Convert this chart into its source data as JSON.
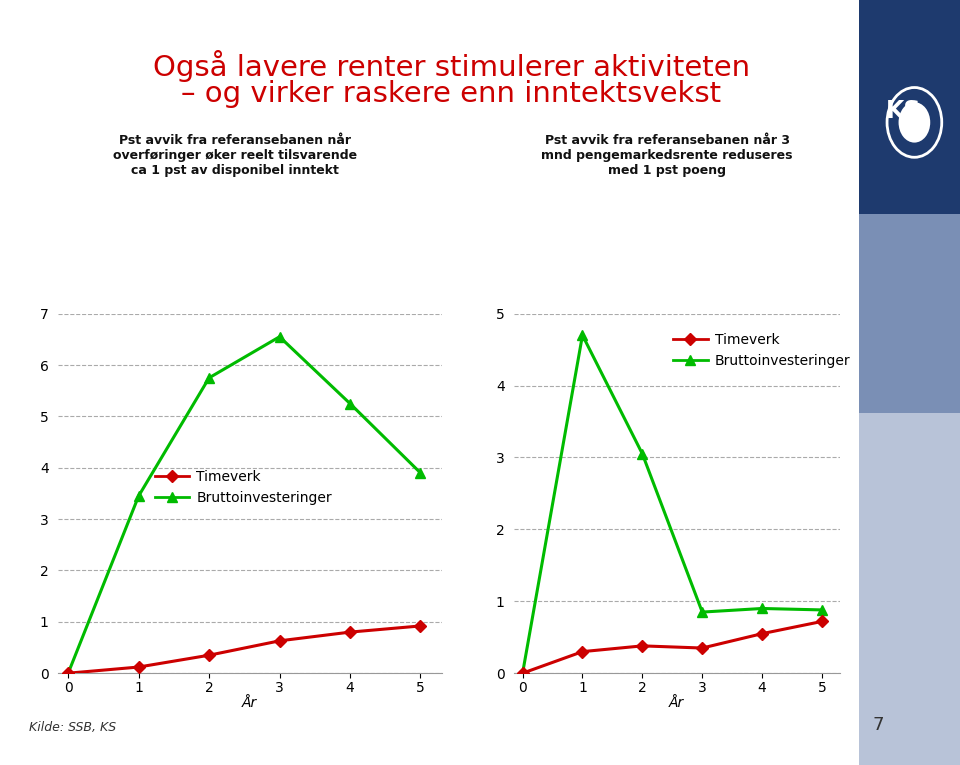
{
  "title_line1": "Også lavere renter stimulerer aktiviteten",
  "title_line2": "– og virker raskere enn inntektsvekst",
  "title_color": "#cc0000",
  "background_color": "#ffffff",
  "left_chart": {
    "subtitle": "Pst avvik fra referansebanen når\noverføringer øker reelt tilsvarende\nca 1 pst av disponibel inntekt",
    "x": [
      0,
      1,
      2,
      3,
      4,
      5
    ],
    "timeverk": [
      0.0,
      0.12,
      0.35,
      0.63,
      0.8,
      0.92
    ],
    "bruttoinv": [
      0.0,
      3.45,
      5.75,
      6.55,
      5.25,
      3.9
    ],
    "ylim": [
      0,
      7
    ],
    "yticks": [
      0,
      1,
      2,
      3,
      4,
      5,
      6,
      7
    ],
    "xlabel": "År"
  },
  "right_chart": {
    "subtitle": "Pst avvik fra referansebanen når 3\nmnd pengemarkedsrente reduseres\nmed 1 pst poeng",
    "x": [
      0,
      1,
      2,
      3,
      4,
      5
    ],
    "timeverk": [
      0.0,
      0.3,
      0.38,
      0.35,
      0.55,
      0.72
    ],
    "bruttoinv": [
      0.0,
      4.7,
      3.05,
      0.85,
      0.9,
      0.88
    ],
    "ylim": [
      0,
      5
    ],
    "yticks": [
      0,
      1,
      2,
      3,
      4,
      5
    ],
    "xlabel": "År"
  },
  "legend_timeverk": "Timeverk",
  "legend_bruttoinv": "Bruttoinvesteringer",
  "timeverk_color": "#cc0000",
  "bruttoinv_color": "#00bb00",
  "source_text": "Kilde: SSB, KS",
  "page_number": "7",
  "sidebar_color1": "#1e3a6e",
  "sidebar_color2": "#7a8fb5",
  "sidebar_color3": "#b8c3d8"
}
